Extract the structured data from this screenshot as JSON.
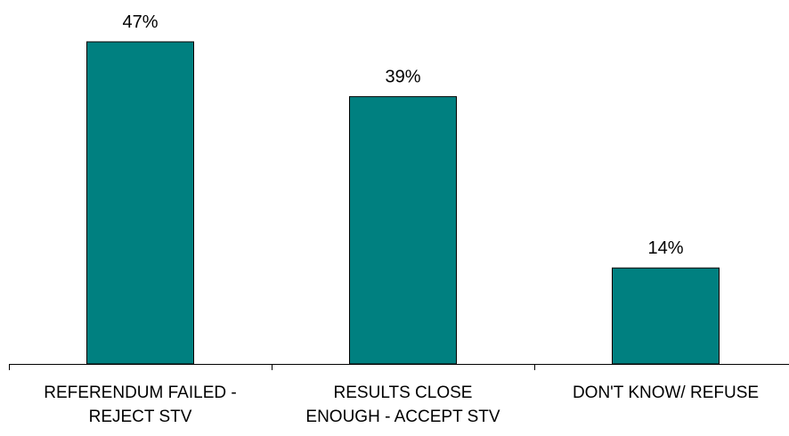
{
  "chart_data": {
    "type": "bar",
    "categories": [
      "REFERENDUM FAILED - REJECT STV",
      "RESULTS CLOSE ENOUGH - ACCEPT STV",
      "DON'T KNOW/ REFUSE"
    ],
    "category_label_lines": [
      [
        "REFERENDUM FAILED -",
        "REJECT STV"
      ],
      [
        "RESULTS CLOSE",
        "ENOUGH - ACCEPT STV"
      ],
      [
        "DON'T KNOW/ REFUSE"
      ]
    ],
    "values": [
      47,
      39,
      14
    ],
    "data_labels": [
      "47%",
      "39%",
      "14%"
    ],
    "ylim": [
      0,
      47
    ],
    "bar_color": "#008080",
    "grid": false,
    "legend": "none"
  }
}
